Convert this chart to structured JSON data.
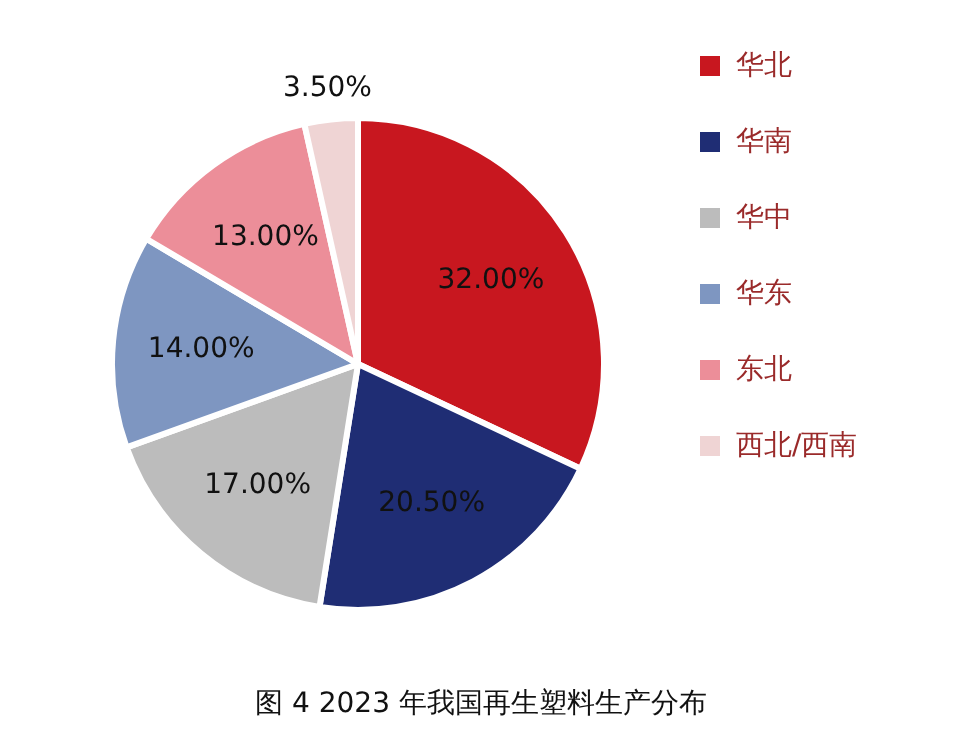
{
  "chart_data": {
    "type": "pie",
    "title": "图 4  2023 年我国再生塑料生产分布",
    "categories": [
      "华北",
      "华南",
      "华中",
      "华东",
      "东北",
      "西北/西南"
    ],
    "values": [
      32.0,
      20.5,
      17.0,
      14.0,
      13.0,
      3.5
    ],
    "value_labels": [
      "32.00%",
      "20.50%",
      "17.00%",
      "14.00%",
      "13.00%",
      "3.50%"
    ],
    "colors": [
      "#c8171f",
      "#1f2d74",
      "#bcbcbc",
      "#7e96c1",
      "#ec8e99",
      "#efd4d4"
    ],
    "legend": "right"
  }
}
